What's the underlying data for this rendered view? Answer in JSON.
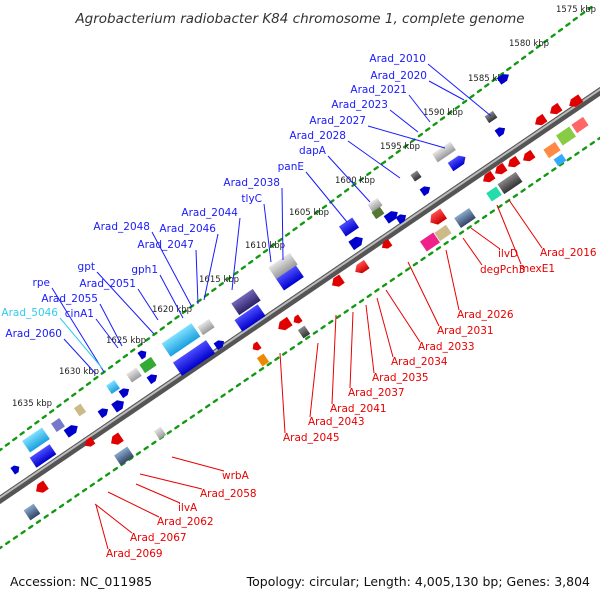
{
  "title": "Agrobacterium radiobacter K84 chromosome 1, complete genome",
  "footer": {
    "accession": "Accession: NC_011985",
    "summary": "Topology: circular; Length: 4,005,130 bp; Genes: 3,804"
  },
  "colors": {
    "forward_label": "#1a1aff",
    "reverse_label": "#e80000",
    "pseudo_label": "#33ccee",
    "tick": "#119911",
    "axis": "#888888"
  },
  "ruler": [
    "1575 kbp",
    "1580 kbp",
    "1585 kbp",
    "1590 kbp",
    "1595 kbp",
    "1600 kbp",
    "1605 kbp",
    "1610 kbp",
    "1615 kbp",
    "1620 kbp",
    "1625 kbp",
    "1630 kbp",
    "1635 kbp"
  ],
  "forward_labels": [
    "Arad_2010",
    "Arad_2020",
    "Arad_2021",
    "Arad_2023",
    "Arad_2027",
    "Arad_2028",
    "dapA",
    "panE",
    "Arad_2038",
    "tlyC",
    "Arad_2044",
    "Arad_2046",
    "Arad_2048",
    "Arad_2047",
    "gpt",
    "gph1",
    "Arad_2051",
    "rpe",
    "Arad_2055",
    "Arad_5046",
    "cinA1",
    "Arad_2060"
  ],
  "reverse_labels": [
    "Arad_2016",
    "mexE1",
    "ilvD",
    "degPch3",
    "Arad_2026",
    "Arad_2031",
    "Arad_2033",
    "Arad_2034",
    "Arad_2035",
    "Arad_2037",
    "Arad_2041",
    "Arad_2043",
    "Arad_2045",
    "wrbA",
    "Arad_2058",
    "ilvA",
    "Arad_2062",
    "Arad_2067",
    "Arad_2069"
  ]
}
